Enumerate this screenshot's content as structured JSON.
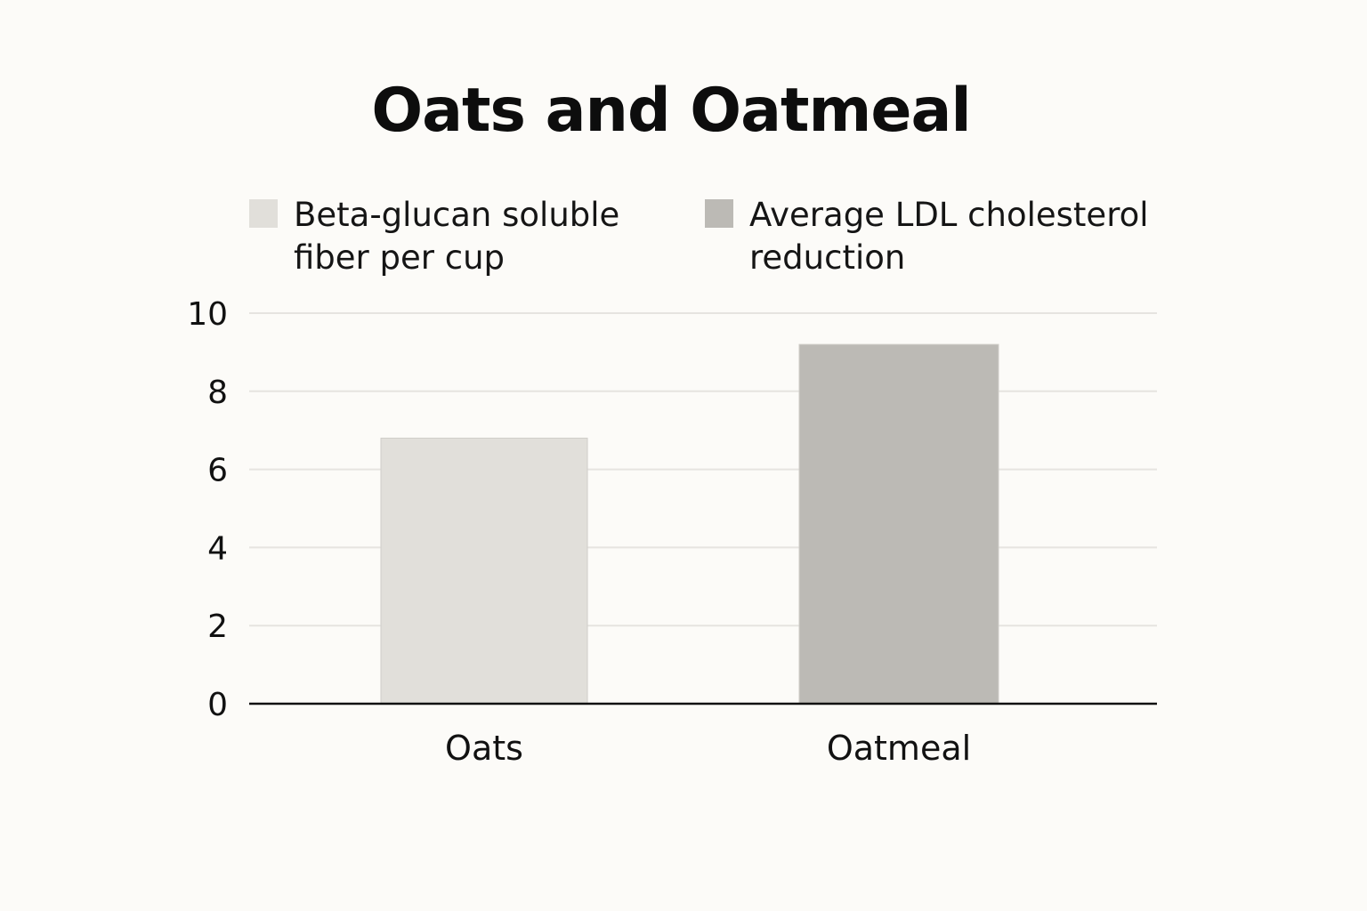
{
  "chart_data": {
    "type": "bar",
    "title": "Oats and Oatmeal",
    "xlabel": "",
    "ylabel": "",
    "categories": [
      "Oats",
      "Oatmeal"
    ],
    "series": [
      {
        "name": "Beta-glucan soluble fiber per cup",
        "values": [
          6.8,
          null
        ],
        "color": "#e1dfda"
      },
      {
        "name": "Average LDL cholesterol reduction",
        "values": [
          null,
          9.2
        ],
        "color": "#bcbab5"
      }
    ],
    "ylim": [
      0,
      10
    ],
    "yticks": [
      "0",
      "2",
      "4",
      "6",
      "8",
      "10"
    ],
    "grid": true,
    "legend_position": "top"
  },
  "colors": {
    "background": "#fcfbf8",
    "gridline": "#e6e4e0",
    "axis": "#111111"
  }
}
